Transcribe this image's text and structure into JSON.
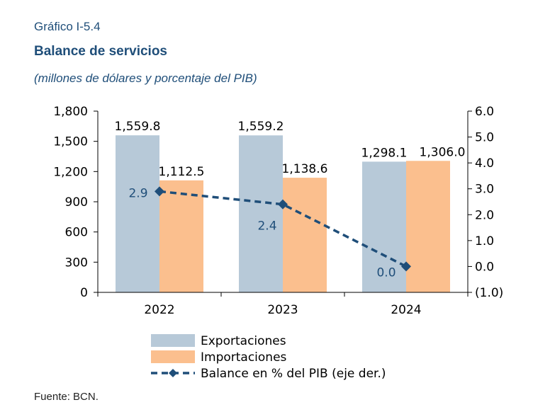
{
  "header": {
    "figure_label": "Gráfico I-5.4",
    "title": "Balance de servicios",
    "subtitle": "(millones de dólares y porcentaje del PIB)"
  },
  "footer": {
    "source": "Fuente: BCN."
  },
  "colors": {
    "exportaciones": "#b7c9d8",
    "importaciones": "#fbbf8e",
    "balance": "#1f4e79",
    "axis": "#000000"
  },
  "chart_data": {
    "type": "bar",
    "categories": [
      "2022",
      "2023",
      "2024"
    ],
    "series": [
      {
        "name": "Exportaciones",
        "type": "bar",
        "axis": "left",
        "values": [
          1559.8,
          1559.2,
          1298.1
        ],
        "labels": [
          "1,559.8",
          "1,559.2",
          "1,298.1"
        ]
      },
      {
        "name": "Importaciones",
        "type": "bar",
        "axis": "left",
        "values": [
          1112.5,
          1138.6,
          1306.0
        ],
        "labels": [
          "1,112.5",
          "1,138.6",
          "1,306.0"
        ]
      },
      {
        "name": "Balance en % del PIB (eje der.)",
        "type": "line",
        "axis": "right",
        "values": [
          2.9,
          2.4,
          0.0
        ],
        "labels": [
          "2.9",
          "2.4",
          "0.0"
        ]
      }
    ],
    "ylim_left": [
      0,
      1800
    ],
    "yticks_left": [
      "1,800",
      "1,500",
      "1,200",
      "900",
      "600",
      "300",
      "0"
    ],
    "ytick_values_left": [
      1800,
      1500,
      1200,
      900,
      600,
      300,
      0
    ],
    "ylim_right": [
      -1,
      6
    ],
    "yticks_right": [
      "6.0",
      "5.0",
      "4.0",
      "3.0",
      "2.0",
      "1.0",
      "0.0",
      "(1.0)"
    ],
    "ytick_values_right": [
      6,
      5,
      4,
      3,
      2,
      1,
      0,
      -1
    ],
    "grid": false,
    "legend_position": "bottom"
  }
}
